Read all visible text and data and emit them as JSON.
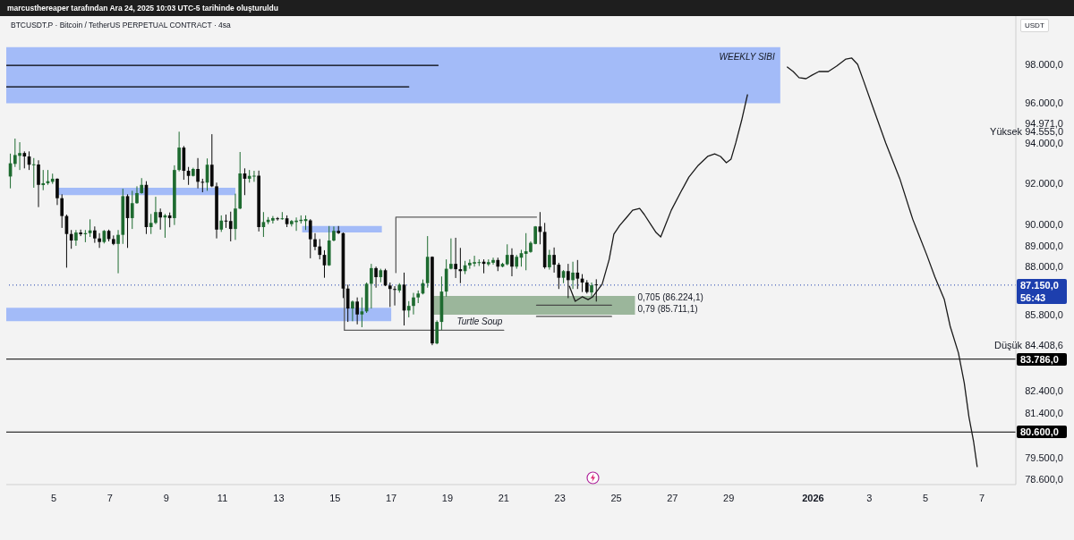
{
  "chart_data": {
    "type": "candlestick",
    "title": "BTCUSDT.P · Bitcoin / TetherUS PERPETUAL CONTRACT · 4sa",
    "ylabel": "USDT",
    "x": [
      "2025-12-03T11:00",
      "2025-12-03T15:00",
      "2025-12-03T19:00",
      "2025-12-03T23:00",
      "2025-12-04T03:00",
      "2025-12-04T07:00",
      "2025-12-04T11:00",
      "2025-12-04T15:00",
      "2025-12-04T19:00",
      "2025-12-04T23:00",
      "2025-12-05T03:00",
      "2025-12-05T07:00",
      "2025-12-05T11:00",
      "2025-12-05T15:00",
      "2025-12-05T19:00",
      "2025-12-05T23:00",
      "2025-12-06T03:00",
      "2025-12-06T07:00",
      "2025-12-06T11:00",
      "2025-12-06T15:00",
      "2025-12-06T19:00",
      "2025-12-06T23:00",
      "2025-12-07T03:00",
      "2025-12-07T07:00",
      "2025-12-07T11:00",
      "2025-12-07T15:00",
      "2025-12-07T19:00",
      "2025-12-07T23:00",
      "2025-12-08T03:00",
      "2025-12-08T07:00",
      "2025-12-08T11:00",
      "2025-12-08T15:00",
      "2025-12-08T19:00",
      "2025-12-08T23:00",
      "2025-12-09T03:00",
      "2025-12-09T07:00",
      "2025-12-09T11:00",
      "2025-12-09T15:00",
      "2025-12-09T19:00",
      "2025-12-09T23:00",
      "2025-12-10T03:00",
      "2025-12-10T07:00",
      "2025-12-10T11:00",
      "2025-12-10T15:00",
      "2025-12-10T19:00",
      "2025-12-10T23:00",
      "2025-12-11T03:00",
      "2025-12-11T07:00",
      "2025-12-11T11:00",
      "2025-12-11T15:00",
      "2025-12-11T19:00",
      "2025-12-11T23:00",
      "2025-12-12T03:00",
      "2025-12-12T07:00",
      "2025-12-12T11:00",
      "2025-12-12T15:00",
      "2025-12-12T19:00",
      "2025-12-12T23:00",
      "2025-12-13T03:00",
      "2025-12-13T07:00",
      "2025-12-13T11:00",
      "2025-12-13T15:00",
      "2025-12-13T19:00",
      "2025-12-13T23:00",
      "2025-12-14T03:00",
      "2025-12-14T07:00",
      "2025-12-14T11:00",
      "2025-12-14T15:00",
      "2025-12-14T19:00",
      "2025-12-14T23:00",
      "2025-12-15T03:00",
      "2025-12-15T07:00",
      "2025-12-15T11:00",
      "2025-12-15T15:00",
      "2025-12-15T19:00",
      "2025-12-15T23:00",
      "2025-12-16T03:00",
      "2025-12-16T07:00",
      "2025-12-16T11:00",
      "2025-12-16T15:00",
      "2025-12-16T19:00",
      "2025-12-16T23:00",
      "2025-12-17T03:00",
      "2025-12-17T07:00",
      "2025-12-17T11:00",
      "2025-12-17T15:00",
      "2025-12-17T19:00",
      "2025-12-17T23:00",
      "2025-12-18T03:00",
      "2025-12-18T07:00",
      "2025-12-18T11:00",
      "2025-12-18T15:00",
      "2025-12-18T19:00",
      "2025-12-18T23:00",
      "2025-12-19T03:00",
      "2025-12-19T07:00",
      "2025-12-19T11:00",
      "2025-12-19T15:00",
      "2025-12-19T19:00",
      "2025-12-19T23:00",
      "2025-12-20T03:00",
      "2025-12-20T07:00",
      "2025-12-20T11:00",
      "2025-12-20T15:00",
      "2025-12-20T19:00",
      "2025-12-20T23:00",
      "2025-12-21T03:00",
      "2025-12-21T07:00",
      "2025-12-21T11:00",
      "2025-12-21T15:00",
      "2025-12-21T19:00",
      "2025-12-21T23:00",
      "2025-12-22T03:00",
      "2025-12-22T07:00",
      "2025-12-22T11:00",
      "2025-12-22T15:00",
      "2025-12-22T19:00",
      "2025-12-22T23:00",
      "2025-12-23T03:00",
      "2025-12-23T07:00",
      "2025-12-23T11:00",
      "2025-12-23T15:00",
      "2025-12-23T19:00",
      "2025-12-23T23:00",
      "2025-12-24T03:00",
      "2025-12-24T07:00"
    ],
    "ohlc": [
      [
        92330,
        93460,
        91750,
        92980
      ],
      [
        92950,
        94210,
        92800,
        93390
      ],
      [
        93350,
        94030,
        92650,
        93490
      ],
      [
        93490,
        93570,
        92730,
        93320
      ],
      [
        93320,
        93570,
        92650,
        92910
      ],
      [
        92890,
        93240,
        91780,
        92930
      ],
      [
        92920,
        93130,
        90840,
        91920
      ],
      [
        91910,
        92650,
        91660,
        92000
      ],
      [
        92000,
        92650,
        91920,
        92100
      ],
      [
        92070,
        92470,
        91970,
        92220
      ],
      [
        92220,
        92240,
        90940,
        91270
      ],
      [
        91270,
        91460,
        89840,
        90410
      ],
      [
        90410,
        90480,
        87960,
        89550
      ],
      [
        89550,
        89740,
        88850,
        89240
      ],
      [
        89240,
        89740,
        88990,
        89620
      ],
      [
        89620,
        89760,
        89450,
        89540
      ],
      [
        89540,
        89740,
        89160,
        89590
      ],
      [
        89590,
        90250,
        89410,
        89720
      ],
      [
        89720,
        89910,
        89130,
        89340
      ],
      [
        89340,
        89590,
        88890,
        89170
      ],
      [
        89170,
        89740,
        89100,
        89700
      ],
      [
        89700,
        89760,
        89200,
        89310
      ],
      [
        89310,
        89480,
        89020,
        89080
      ],
      [
        89080,
        89740,
        87700,
        89510
      ],
      [
        89510,
        91730,
        89080,
        91370
      ],
      [
        91370,
        91460,
        88890,
        90310
      ],
      [
        90310,
        91630,
        89790,
        91030
      ],
      [
        91030,
        91850,
        91000,
        91520
      ],
      [
        91520,
        92250,
        91490,
        91920
      ],
      [
        91920,
        92100,
        89550,
        89880
      ],
      [
        89880,
        90510,
        89550,
        90080
      ],
      [
        90080,
        91340,
        90020,
        90600
      ],
      [
        90600,
        90770,
        89760,
        90340
      ],
      [
        90340,
        90510,
        89370,
        90440
      ],
      [
        90440,
        90580,
        89870,
        90310
      ],
      [
        90310,
        92880,
        89980,
        92650
      ],
      [
        92650,
        94555,
        92580,
        93760
      ],
      [
        93760,
        93840,
        92170,
        92610
      ],
      [
        92610,
        92800,
        91920,
        92360
      ],
      [
        92360,
        92760,
        92330,
        92700
      ],
      [
        92700,
        93240,
        91750,
        92070
      ],
      [
        92070,
        92220,
        91560,
        92030
      ],
      [
        92030,
        93220,
        91630,
        92910
      ],
      [
        92910,
        94430,
        91810,
        91850
      ],
      [
        91850,
        92030,
        89340,
        89760
      ],
      [
        89760,
        90440,
        89650,
        90190
      ],
      [
        90190,
        90480,
        89840,
        90170
      ],
      [
        90170,
        90620,
        89200,
        89790
      ],
      [
        89790,
        91490,
        89270,
        90770
      ],
      [
        90770,
        93540,
        90740,
        92480
      ],
      [
        92480,
        92730,
        91420,
        92220
      ],
      [
        92220,
        92650,
        92030,
        92360
      ],
      [
        92340,
        92610,
        92070,
        92370
      ],
      [
        92370,
        92620,
        89670,
        89880
      ],
      [
        89880,
        90600,
        89410,
        90120
      ],
      [
        90120,
        90360,
        90020,
        90230
      ],
      [
        90190,
        90410,
        90050,
        90310
      ],
      [
        90300,
        90360,
        90190,
        90270
      ],
      [
        90270,
        90600,
        90230,
        90300
      ],
      [
        90300,
        90440,
        89880,
        90020
      ],
      [
        90020,
        90220,
        89910,
        90170
      ],
      [
        90120,
        90340,
        89700,
        90190
      ],
      [
        90170,
        90440,
        90050,
        90230
      ],
      [
        90170,
        90440,
        89740,
        90260
      ],
      [
        90200,
        90260,
        88400,
        89300
      ],
      [
        89300,
        89590,
        88780,
        88940
      ],
      [
        88960,
        89310,
        88350,
        88560
      ],
      [
        88560,
        88780,
        87490,
        88070
      ],
      [
        88070,
        89930,
        88040,
        89240
      ],
      [
        89240,
        89910,
        89200,
        89700
      ],
      [
        89700,
        89930,
        89550,
        89590
      ],
      [
        89590,
        89620,
        86550,
        86990
      ],
      [
        86990,
        87170,
        85460,
        86070
      ],
      [
        86070,
        86440,
        85490,
        86390
      ],
      [
        86390,
        86580,
        85350,
        85800
      ],
      [
        85800,
        86580,
        85220,
        85940
      ],
      [
        85940,
        87270,
        85870,
        87210
      ],
      [
        87210,
        88140,
        86070,
        87940
      ],
      [
        87940,
        88010,
        87030,
        87520
      ],
      [
        87520,
        87910,
        87280,
        87840
      ],
      [
        87840,
        87910,
        87100,
        87130
      ],
      [
        87130,
        87270,
        86140,
        86970
      ],
      [
        86970,
        87100,
        86210,
        86940
      ],
      [
        86900,
        87240,
        86800,
        87170
      ],
      [
        87170,
        87730,
        85300,
        85980
      ],
      [
        85980,
        86410,
        85670,
        86190
      ],
      [
        86190,
        86790,
        85800,
        86580
      ],
      [
        86580,
        86900,
        86320,
        86760
      ],
      [
        86760,
        87410,
        86720,
        87240
      ],
      [
        87240,
        89450,
        87030,
        88470
      ],
      [
        88470,
        88490,
        84408.6,
        84490
      ],
      [
        84490,
        85530,
        84450,
        85460
      ],
      [
        85460,
        87550,
        85090,
        86850
      ],
      [
        86850,
        88350,
        86620,
        87910
      ],
      [
        87910,
        89340,
        87880,
        88140
      ],
      [
        88140,
        89370,
        87480,
        87890
      ],
      [
        87890,
        88890,
        87240,
        87800
      ],
      [
        87800,
        88280,
        87660,
        88070
      ],
      [
        88070,
        88350,
        87910,
        88190
      ],
      [
        88150,
        88520,
        88010,
        88220
      ],
      [
        88190,
        88350,
        88040,
        88220
      ],
      [
        88240,
        88350,
        87700,
        88140
      ],
      [
        88120,
        88350,
        88040,
        88220
      ],
      [
        88190,
        88430,
        88100,
        88320
      ],
      [
        88320,
        88430,
        87800,
        88010
      ],
      [
        88010,
        88190,
        87980,
        88140
      ],
      [
        88120,
        89060,
        88070,
        88560
      ],
      [
        88560,
        88870,
        87560,
        88010
      ],
      [
        88010,
        88560,
        87910,
        88470
      ],
      [
        88430,
        88800,
        88010,
        88640
      ],
      [
        88610,
        89590,
        87840,
        88730
      ],
      [
        88700,
        89200,
        88660,
        89130
      ],
      [
        89080,
        89930,
        89060,
        89910
      ],
      [
        89910,
        90600,
        89060,
        89650
      ],
      [
        89650,
        90080,
        87910,
        87980
      ],
      [
        87980,
        88800,
        87870,
        88560
      ],
      [
        88560,
        88910,
        87730,
        88100
      ],
      [
        88100,
        88190,
        86970,
        87490
      ],
      [
        87490,
        87850,
        87240,
        87800
      ],
      [
        87800,
        88140,
        86550,
        87380
      ],
      [
        87380,
        88240,
        86970,
        87730
      ],
      [
        87730,
        88320,
        86970,
        87450
      ],
      [
        87450,
        87660,
        86830,
        87270
      ],
      [
        87270,
        87380,
        86760,
        86830
      ],
      [
        86810,
        87270,
        86620,
        87140
      ],
      [
        87180,
        87420,
        86390,
        87150
      ]
    ],
    "colors": [
      "#1e6b30",
      "#1e6b30",
      "#1e6b30",
      "#0a0a0a",
      "#0a0a0a",
      "#1e6b30",
      "#0a0a0a",
      "#1e6b30",
      "#1e6b30",
      "#1e6b30",
      "#0a0a0a",
      "#0a0a0a",
      "#0a0a0a",
      "#0a0a0a",
      "#1e6b30",
      "#0a0a0a",
      "#1e6b30",
      "#1e6b30",
      "#0a0a0a",
      "#0a0a0a",
      "#1e6b30",
      "#0a0a0a",
      "#0a0a0a",
      "#1e6b30",
      "#1e6b30",
      "#0a0a0a",
      "#1e6b30",
      "#1e6b30",
      "#1e6b30",
      "#0a0a0a",
      "#1e6b30",
      "#1e6b30",
      "#0a0a0a",
      "#1e6b30",
      "#0a0a0a",
      "#1e6b30",
      "#1e6b30",
      "#0a0a0a",
      "#0a0a0a",
      "#1e6b30",
      "#0a0a0a",
      "#0a0a0a",
      "#1e6b30",
      "#0a0a0a",
      "#0a0a0a",
      "#1e6b30",
      "#0a0a0a",
      "#0a0a0a",
      "#1e6b30",
      "#1e6b30",
      "#0a0a0a",
      "#1e6b30",
      "#1e6b30",
      "#0a0a0a",
      "#1e6b30",
      "#1e6b30",
      "#1e6b30",
      "#0a0a0a",
      "#1e6b30",
      "#0a0a0a",
      "#1e6b30",
      "#1e6b30",
      "#1e6b30",
      "#1e6b30",
      "#0a0a0a",
      "#0a0a0a",
      "#0a0a0a",
      "#0a0a0a",
      "#1e6b30",
      "#1e6b30",
      "#0a0a0a",
      "#0a0a0a",
      "#0a0a0a",
      "#1e6b30",
      "#0a0a0a",
      "#1e6b30",
      "#1e6b30",
      "#1e6b30",
      "#0a0a0a",
      "#1e6b30",
      "#0a0a0a",
      "#0a0a0a",
      "#0a0a0a",
      "#1e6b30",
      "#0a0a0a",
      "#1e6b30",
      "#1e6b30",
      "#1e6b30",
      "#1e6b30",
      "#1e6b30",
      "#0a0a0a",
      "#1e6b30",
      "#1e6b30",
      "#1e6b30",
      "#1e6b30",
      "#0a0a0a",
      "#0a0a0a",
      "#1e6b30",
      "#1e6b30",
      "#1e6b30",
      "#1e6b30",
      "#0a0a0a",
      "#1e6b30",
      "#1e6b30",
      "#0a0a0a",
      "#1e6b30",
      "#1e6b30",
      "#0a0a0a",
      "#1e6b30",
      "#1e6b30",
      "#1e6b30",
      "#1e6b30",
      "#1e6b30",
      "#0a0a0a",
      "#0a0a0a",
      "#1e6b30",
      "#0a0a0a",
      "#0a0a0a",
      "#1e6b30",
      "#0a0a0a",
      "#1e6b30",
      "#0a0a0a",
      "#0a0a0a",
      "#0a0a0a",
      "#1e6b30",
      "#0a0a0a"
    ],
    "series": [
      {
        "type": "area",
        "x": [
          "2025-12-03T07:30",
          "2025-12-30T20:00"
        ],
        "lower": [
          96000,
          96000
        ],
        "upper": [
          98900,
          98900
        ],
        "values": [
          null,
          null
        ],
        "color": "#a3bbf8"
      },
      {
        "type": "area",
        "x": [
          "2025-12-05T03:00",
          "2025-12-11T11:00"
        ],
        "lower": [
          91420,
          91420
        ],
        "upper": [
          91780,
          91780
        ],
        "values": [
          null,
          null
        ],
        "color": "#a3bbf8"
      },
      {
        "type": "area",
        "x": [
          "2025-12-13T20:00",
          "2025-12-16T16:00"
        ],
        "lower": [
          89620,
          89620
        ],
        "upper": [
          89930,
          89930
        ],
        "values": [
          null,
          null
        ],
        "color": "#a3bbf8"
      },
      {
        "type": "area",
        "x": [
          "2025-12-03T07:30",
          "2025-12-17T00:00"
        ],
        "lower": [
          85490,
          85490
        ],
        "upper": [
          86110,
          86110
        ],
        "values": [
          null,
          null
        ],
        "color": "#a3bbf8"
      },
      {
        "type": "area",
        "x": [
          "2025-12-18T12:00",
          "2025-12-25T16:00"
        ],
        "lower": [
          85790,
          85790
        ],
        "upper": [
          86650,
          86650
        ],
        "values": [
          null,
          null
        ],
        "color": "#9bb69b"
      },
      {
        "type": "line",
        "x": [
          "2025-12-03T07:30",
          "2025-12-18T16:00"
        ],
        "values": [
          97950,
          97950
        ],
        "color": "#000000"
      },
      {
        "type": "line",
        "x": [
          "2025-12-03T07:30",
          "2025-12-17T15:00"
        ],
        "values": [
          96840,
          96840
        ],
        "color": "#000000"
      },
      {
        "type": "line",
        "x": [
          "2025-12-17T04:00",
          "2025-12-17T04:00",
          "2025-12-22T04:00"
        ],
        "values": [
          87730,
          90360,
          90360
        ],
        "color": "#5e5e5e"
      },
      {
        "type": "line",
        "x": [
          "2025-12-15T08:00",
          "2025-12-15T08:00",
          "2025-12-21T00:00"
        ],
        "values": [
          86990,
          85080,
          85080
        ],
        "color": "#5e5e5e"
      },
      {
        "type": "line",
        "name": "0,705 (86.224,1)",
        "x": [
          "2025-12-22T04:00",
          "2025-12-24T20:00"
        ],
        "values": [
          86224.1,
          86224.1
        ],
        "color": "#4a4a4a"
      },
      {
        "type": "line",
        "name": "0,79 (85.711,1)",
        "x": [
          "2025-12-22T04:00",
          "2025-12-24T20:00"
        ],
        "values": [
          85711.1,
          85711.1
        ],
        "color": "#4a4a4a"
      },
      {
        "type": "line",
        "x": [
          "2025-12-23T08:00",
          "2025-12-23T13:00",
          "2025-12-23T19:00",
          "2025-12-24T00:00",
          "2025-12-24T04:00",
          "2025-12-24T12:00",
          "2025-12-24T18:00",
          "2025-12-24T22:00",
          "2025-12-25T03:00",
          "2025-12-25T09:00",
          "2025-12-25T14:00",
          "2025-12-25T20:00",
          "2025-12-26T00:00",
          "2025-12-26T06:00",
          "2025-12-26T10:00",
          "2025-12-26T14:00",
          "2025-12-26T17:00",
          "2025-12-26T23:00",
          "2025-12-27T07:00",
          "2025-12-27T14:00",
          "2025-12-27T22:00",
          "2025-12-28T06:00",
          "2025-12-28T12:00",
          "2025-12-28T17:00",
          "2025-12-28T22:00",
          "2025-12-29T02:00",
          "2025-12-29T06:00",
          "2025-12-29T11:00",
          "2025-12-29T16:00"
        ],
        "values": [
          87100,
          86400,
          86610,
          86480,
          86610,
          87190,
          88350,
          89540,
          89960,
          90350,
          90690,
          90780,
          90480,
          89960,
          89620,
          89410,
          89840,
          90690,
          91560,
          92300,
          92880,
          93320,
          93450,
          93320,
          93010,
          93190,
          93990,
          95120,
          96430
        ],
        "color": "#1a1a1a"
      },
      {
        "type": "line",
        "x": [
          "2025-12-31T02:00",
          "2025-12-31T07:00",
          "2025-12-31T12:00",
          "2025-12-31T18:00",
          "2025-12-31T23:00",
          "2026-01-01T05:00",
          "2026-01-01T13:00",
          "2026-01-01T20:00",
          "2026-01-02T04:00",
          "2026-01-02T09:00",
          "2026-01-02T14:00",
          "2026-01-02T19:00",
          "2026-01-03T03:00",
          "2026-01-03T14:00",
          "2026-01-04T02:00",
          "2026-01-04T13:00",
          "2026-01-05T01:00",
          "2026-01-05T08:00",
          "2026-01-05T16:00",
          "2026-01-05T21:00",
          "2026-01-06T04:00",
          "2026-01-06T09:00",
          "2026-01-06T13:00",
          "2026-01-06T17:00",
          "2026-01-06T20:00"
        ],
        "values": [
          97860,
          97630,
          97310,
          97260,
          97440,
          97630,
          97630,
          97910,
          98280,
          98330,
          98000,
          97160,
          95800,
          93990,
          92220,
          90260,
          88560,
          87520,
          86480,
          85260,
          84070,
          82730,
          81250,
          80180,
          79130
        ],
        "color": "#1a1a1a"
      }
    ],
    "ref_lines": [
      {
        "axis": "y",
        "value": 83786,
        "label": "83.786,0",
        "color": "#000000"
      },
      {
        "axis": "y",
        "value": 80600,
        "label": "80.600,0",
        "color": "#000000"
      },
      {
        "axis": "y",
        "value": 87150,
        "label": "87.150,0\n56:43",
        "color": "#1d3fae",
        "line_style": "dotted"
      }
    ],
    "annotations": [
      "marcusthereaper tarafından Ara 24, 2025 10:03 UTC-5 tarihinde oluşturuldu",
      {
        "text": "WEEKLY SIBI",
        "x": "2025-12-30T20:00",
        "y": 98900
      },
      {
        "text": "Turtle Soup",
        "x": "2025-12-19T08:00",
        "y": 85080
      }
    ],
    "xlim": [
      "2025-12-03T07:30",
      "2026-01-08T05:00"
    ],
    "xticks": [
      {
        "value": "2025-12-05",
        "label": "5"
      },
      {
        "value": "2025-12-07",
        "label": "7"
      },
      {
        "value": "2025-12-09",
        "label": "9"
      },
      {
        "value": "2025-12-11",
        "label": "11"
      },
      {
        "value": "2025-12-13",
        "label": "13"
      },
      {
        "value": "2025-12-15",
        "label": "15"
      },
      {
        "value": "2025-12-17",
        "label": "17"
      },
      {
        "value": "2025-12-19",
        "label": "19"
      },
      {
        "value": "2025-12-21",
        "label": "21"
      },
      {
        "value": "2025-12-23",
        "label": "23"
      },
      {
        "value": "2025-12-25",
        "label": "25"
      },
      {
        "value": "2025-12-27",
        "label": "27"
      },
      {
        "value": "2025-12-29",
        "label": "29"
      },
      {
        "value": "2026-01-01",
        "label": "2026"
      },
      {
        "value": "2026-01-03",
        "label": "3"
      },
      {
        "value": "2026-01-05",
        "label": "5"
      },
      {
        "value": "2026-01-07",
        "label": "7"
      }
    ],
    "ylim": [
      78380,
      100550
    ],
    "yticks": [
      {
        "value": 98000,
        "label": "98.000,0"
      },
      {
        "value": 96000,
        "label": "96.000,0"
      },
      {
        "value": 94971,
        "label": "94.971,0"
      },
      {
        "value": 94555,
        "label": "Yüksek 94.555,0"
      },
      {
        "value": 94000,
        "label": "94.000,0"
      },
      {
        "value": 92000,
        "label": "92.000,0"
      },
      {
        "value": 90000,
        "label": "90.000,0"
      },
      {
        "value": 89000,
        "label": "89.000,0"
      },
      {
        "value": 88000,
        "label": "88.000,0"
      },
      {
        "value": 85800,
        "label": "85.800,0"
      },
      {
        "value": 84408.6,
        "label": "Düşük 84.408,6"
      },
      {
        "value": 82400,
        "label": "82.400,0"
      },
      {
        "value": 81400,
        "label": "81.400,0"
      },
      {
        "value": 79500,
        "label": "79.500,0"
      },
      {
        "value": 78600,
        "label": "78.600,0"
      }
    ],
    "log": "y"
  }
}
